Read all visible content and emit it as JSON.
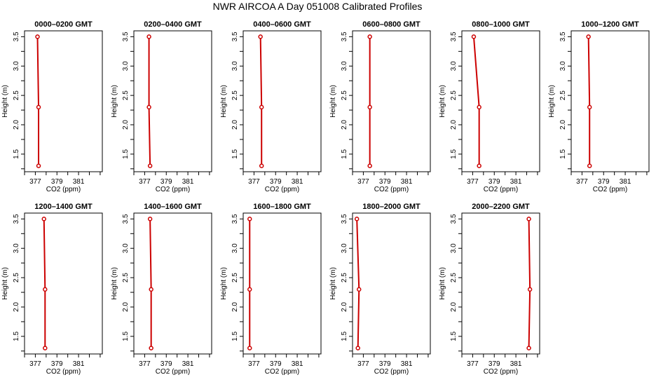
{
  "figure": {
    "title": "NWR AIRCOA A  Day 051008  Calibrated Profiles",
    "line_color": "#cc0000"
  },
  "chart_data": [
    {
      "type": "line",
      "title": "0000–0200 GMT",
      "xlabel": "CO2 (ppm)",
      "ylabel": "Height (m)",
      "xlim": [
        376,
        383.2
      ],
      "ylim": [
        1.2,
        3.6
      ],
      "xticks": [
        "377",
        "379",
        "381"
      ],
      "yticks": [
        "1.5",
        "2.0",
        "2.5",
        "3.0",
        "3.5"
      ],
      "points": [
        {
          "x": 377.3,
          "y": 1.3
        },
        {
          "x": 377.3,
          "y": 2.3
        },
        {
          "x": 377.2,
          "y": 3.5
        }
      ],
      "x_at_1.3m": 377.3,
      "x_at_2.3m": 377.3,
      "x_at_3.5m": 377.2
    },
    {
      "type": "line",
      "title": "0200–0400 GMT",
      "xlabel": "CO2 (ppm)",
      "ylabel": "Height (m)",
      "xlim": [
        376,
        383.2
      ],
      "ylim": [
        1.2,
        3.6
      ],
      "xticks": [
        "377",
        "379",
        "381"
      ],
      "yticks": [
        "1.5",
        "2.0",
        "2.5",
        "3.0",
        "3.5"
      ],
      "points": [
        {
          "x": 377.5,
          "y": 1.3
        },
        {
          "x": 377.4,
          "y": 2.3
        },
        {
          "x": 377.4,
          "y": 3.5
        }
      ]
    },
    {
      "type": "line",
      "title": "0400–0600 GMT",
      "xlabel": "CO2 (ppm)",
      "ylabel": "Height (m)",
      "xlim": [
        376,
        383.2
      ],
      "ylim": [
        1.2,
        3.6
      ],
      "xticks": [
        "377",
        "379",
        "381"
      ],
      "yticks": [
        "1.5",
        "2.0",
        "2.5",
        "3.0",
        "3.5"
      ],
      "points": [
        {
          "x": 377.7,
          "y": 1.3
        },
        {
          "x": 377.7,
          "y": 2.3
        },
        {
          "x": 377.6,
          "y": 3.5
        }
      ]
    },
    {
      "type": "line",
      "title": "0600–0800 GMT",
      "xlabel": "CO2 (ppm)",
      "ylabel": "Height (m)",
      "xlim": [
        376,
        383.2
      ],
      "ylim": [
        1.2,
        3.6
      ],
      "xticks": [
        "377",
        "379",
        "381"
      ],
      "yticks": [
        "1.5",
        "2.0",
        "2.5",
        "3.0",
        "3.5"
      ],
      "points": [
        {
          "x": 377.6,
          "y": 1.3
        },
        {
          "x": 377.6,
          "y": 2.3
        },
        {
          "x": 377.6,
          "y": 3.5
        }
      ]
    },
    {
      "type": "line",
      "title": "0800–1000 GMT",
      "xlabel": "CO2 (ppm)",
      "ylabel": "Height (m)",
      "xlim": [
        376,
        383.2
      ],
      "ylim": [
        1.2,
        3.6
      ],
      "xticks": [
        "377",
        "379",
        "381"
      ],
      "yticks": [
        "1.5",
        "2.0",
        "2.5",
        "3.0",
        "3.5"
      ],
      "points": [
        {
          "x": 377.6,
          "y": 1.3
        },
        {
          "x": 377.6,
          "y": 2.3
        },
        {
          "x": 377.1,
          "y": 3.5
        }
      ]
    },
    {
      "type": "line",
      "title": "1000–1200 GMT",
      "xlabel": "CO2 (ppm)",
      "ylabel": "Height (m)",
      "xlim": [
        376,
        383.2
      ],
      "ylim": [
        1.2,
        3.6
      ],
      "xticks": [
        "377",
        "379",
        "381"
      ],
      "yticks": [
        "1.5",
        "2.0",
        "2.5",
        "3.0",
        "3.5"
      ],
      "points": [
        {
          "x": 377.7,
          "y": 1.3
        },
        {
          "x": 377.7,
          "y": 2.3
        },
        {
          "x": 377.6,
          "y": 3.5
        }
      ]
    },
    {
      "type": "line",
      "title": "1200–1400 GMT",
      "xlabel": "CO2 (ppm)",
      "ylabel": "Height (m)",
      "xlim": [
        376,
        383.2
      ],
      "ylim": [
        1.2,
        3.6
      ],
      "xticks": [
        "377",
        "379",
        "381"
      ],
      "yticks": [
        "1.5",
        "2.0",
        "2.5",
        "3.0",
        "3.5"
      ],
      "points": [
        {
          "x": 377.9,
          "y": 1.3
        },
        {
          "x": 377.9,
          "y": 2.3
        },
        {
          "x": 377.8,
          "y": 3.5
        }
      ]
    },
    {
      "type": "line",
      "title": "1400–1600 GMT",
      "xlabel": "CO2 (ppm)",
      "ylabel": "Height (m)",
      "xlim": [
        376,
        383.2
      ],
      "ylim": [
        1.2,
        3.6
      ],
      "xticks": [
        "377",
        "379",
        "381"
      ],
      "yticks": [
        "1.5",
        "2.0",
        "2.5",
        "3.0",
        "3.5"
      ],
      "points": [
        {
          "x": 377.6,
          "y": 1.3
        },
        {
          "x": 377.6,
          "y": 2.3
        },
        {
          "x": 377.5,
          "y": 3.5
        }
      ]
    },
    {
      "type": "line",
      "title": "1600–1800 GMT",
      "xlabel": "CO2 (ppm)",
      "ylabel": "Height (m)",
      "xlim": [
        376,
        383.2
      ],
      "ylim": [
        1.2,
        3.6
      ],
      "xticks": [
        "377",
        "379",
        "381"
      ],
      "yticks": [
        "1.5",
        "2.0",
        "2.5",
        "3.0",
        "3.5"
      ],
      "points": [
        {
          "x": 376.6,
          "y": 1.3
        },
        {
          "x": 376.6,
          "y": 2.3
        },
        {
          "x": 376.6,
          "y": 3.5
        }
      ]
    },
    {
      "type": "line",
      "title": "1800–2000 GMT",
      "xlabel": "CO2 (ppm)",
      "ylabel": "Height (m)",
      "xlim": [
        376,
        383.2
      ],
      "ylim": [
        1.2,
        3.6
      ],
      "xticks": [
        "377",
        "379",
        "381"
      ],
      "yticks": [
        "1.5",
        "2.0",
        "2.5",
        "3.0",
        "3.5"
      ],
      "points": [
        {
          "x": 376.5,
          "y": 1.3
        },
        {
          "x": 376.6,
          "y": 2.3
        },
        {
          "x": 376.4,
          "y": 3.5
        }
      ]
    },
    {
      "type": "line",
      "title": "2000–2200 GMT",
      "xlabel": "CO2 (ppm)",
      "ylabel": "Height (m)",
      "xlim": [
        376,
        383.2
      ],
      "ylim": [
        1.2,
        3.6
      ],
      "xticks": [
        "377",
        "379",
        "381"
      ],
      "yticks": [
        "1.5",
        "2.0",
        "2.5",
        "3.0",
        "3.5"
      ],
      "points": [
        {
          "x": 382.2,
          "y": 1.3
        },
        {
          "x": 382.3,
          "y": 2.3
        },
        {
          "x": 382.2,
          "y": 3.5
        }
      ]
    }
  ]
}
